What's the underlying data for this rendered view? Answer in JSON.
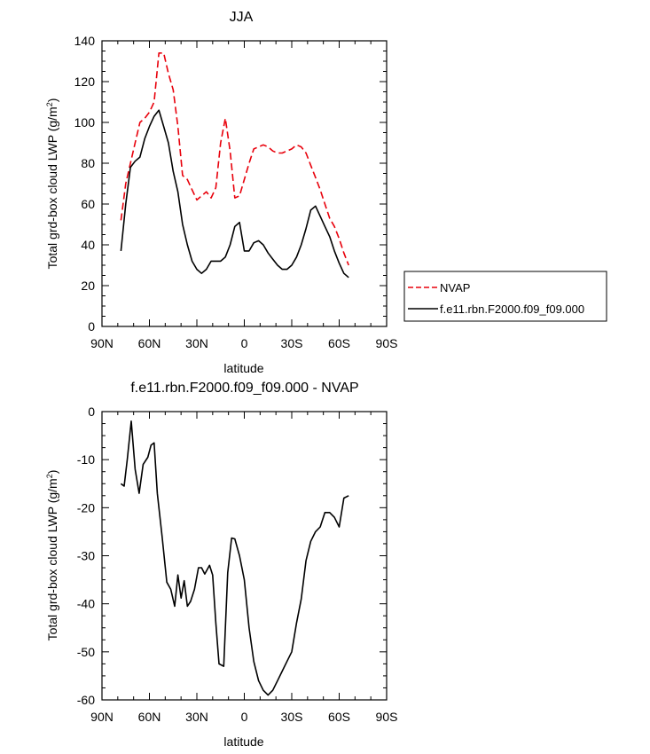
{
  "chart_data": [
    {
      "type": "line",
      "title": "JJA",
      "xlabel": "latitude",
      "ylabel": "Total grd-box cloud LWP (g/m²)",
      "ylabel_main": "Total grd-box cloud LWP (g/m",
      "ylabel_sup": "2",
      "ylabel_end": ")",
      "xlim": [
        -90,
        90
      ],
      "ylim": [
        0,
        140
      ],
      "x_tick_values": [
        -90,
        -60,
        -30,
        0,
        30,
        60,
        90
      ],
      "x_tick_labels": [
        "90N",
        "60N",
        "30N",
        "0",
        "30S",
        "60S",
        "90S"
      ],
      "y_tick_values": [
        0,
        20,
        40,
        60,
        80,
        100,
        120,
        140
      ],
      "y_tick_labels": [
        "0",
        "20",
        "40",
        "60",
        "80",
        "100",
        "120",
        "140"
      ],
      "legend": {
        "placement": "right, outside plot",
        "entries": [
          "NVAP",
          "f.e11.rbn.F2000.f09_f09.000"
        ]
      },
      "series": [
        {
          "name": "NVAP",
          "color": "#e8000b",
          "style": "dashed",
          "x": [
            -78,
            -75,
            -72,
            -69,
            -66,
            -63,
            -60,
            -57,
            -54,
            -51,
            -48,
            -45,
            -42,
            -39,
            -36,
            -33,
            -30,
            -27,
            -24,
            -21,
            -18,
            -15,
            -12,
            -9,
            -6,
            -3,
            0,
            3,
            6,
            9,
            12,
            15,
            18,
            21,
            24,
            27,
            30,
            33,
            36,
            39,
            42,
            45,
            48,
            51,
            54,
            57,
            60,
            63,
            66
          ],
          "y": [
            52,
            70,
            80,
            90,
            100,
            102,
            105,
            110,
            134,
            134,
            124,
            116,
            98,
            74,
            72,
            67,
            62,
            64,
            66,
            63,
            68,
            90,
            102,
            86,
            63,
            64,
            72,
            80,
            87,
            88,
            89,
            88,
            86,
            85,
            85,
            86,
            87,
            89,
            88,
            85,
            79,
            73,
            67,
            60,
            53,
            49,
            43,
            36,
            30
          ]
        },
        {
          "name": "f.e11.rbn.F2000.f09_f09.000",
          "color": "#000000",
          "style": "solid",
          "x": [
            -78,
            -75,
            -72,
            -69,
            -66,
            -63,
            -60,
            -57,
            -54,
            -51,
            -48,
            -45,
            -42,
            -39,
            -36,
            -33,
            -30,
            -27,
            -24,
            -21,
            -18,
            -15,
            -12,
            -9,
            -6,
            -3,
            0,
            3,
            6,
            9,
            12,
            15,
            18,
            21,
            24,
            27,
            30,
            33,
            36,
            39,
            42,
            45,
            48,
            51,
            54,
            57,
            60,
            63,
            66
          ],
          "y": [
            37,
            60,
            78,
            81,
            83,
            92,
            98,
            103,
            106,
            98,
            90,
            76,
            66,
            50,
            40,
            32,
            28,
            26,
            28,
            32,
            32,
            32,
            34,
            40,
            49,
            51,
            37,
            37,
            41,
            42,
            40,
            36,
            33,
            30,
            28,
            28,
            30,
            34,
            40,
            48,
            57,
            59,
            54,
            49,
            44,
            37,
            31,
            26,
            24
          ]
        }
      ]
    },
    {
      "type": "line",
      "title": "f.e11.rbn.F2000.f09_f09.000 - NVAP",
      "xlabel": "latitude",
      "ylabel": "Total grd-box cloud LWP (g/m²)",
      "ylabel_main": "Total grd-box cloud LWP (g/m",
      "ylabel_sup": "2",
      "ylabel_end": ")",
      "xlim": [
        -90,
        90
      ],
      "ylim": [
        -60,
        0
      ],
      "x_tick_values": [
        -90,
        -60,
        -30,
        0,
        30,
        60,
        90
      ],
      "x_tick_labels": [
        "90N",
        "60N",
        "30N",
        "0",
        "30S",
        "60S",
        "90S"
      ],
      "y_tick_values": [
        0,
        -10,
        -20,
        -30,
        -40,
        -50,
        -60
      ],
      "y_tick_labels": [
        "0",
        "-10",
        "-20",
        "-30",
        "-40",
        "-50",
        "-60"
      ],
      "series": [
        {
          "name": "f.e11.rbn.F2000.f09_f09.000 - NVAP",
          "color": "#000000",
          "style": "solid",
          "x": [
            -78,
            -76,
            -74,
            -71.5,
            -69,
            -66.5,
            -64,
            -61,
            -59,
            -57,
            -55,
            -52,
            -49,
            -46.5,
            -44,
            -42,
            -40,
            -38,
            -36,
            -34,
            -31.5,
            -29,
            -27,
            -25,
            -22,
            -20,
            -18,
            -16,
            -13,
            -10.5,
            -8,
            -6,
            -3,
            0,
            3,
            6,
            9,
            12,
            15,
            18,
            21,
            24,
            27,
            30,
            33,
            36,
            39,
            42,
            45,
            48,
            51,
            54,
            57,
            60,
            63,
            66
          ],
          "y": [
            -15,
            -15.5,
            -10,
            -2,
            -12,
            -17,
            -11,
            -9.5,
            -7,
            -6.5,
            -17,
            -26,
            -35.5,
            -37,
            -40.5,
            -34,
            -38.8,
            -35.2,
            -40.5,
            -39.5,
            -37,
            -32.5,
            -32.5,
            -33.8,
            -32,
            -34,
            -44,
            -52.5,
            -53,
            -33.5,
            -26.3,
            -26.5,
            -30,
            -35,
            -45,
            -52,
            -56,
            -58,
            -59,
            -58,
            -56,
            -54,
            -52,
            -50,
            -44,
            -39,
            -31,
            -27,
            -25,
            -24,
            -21,
            -21,
            -22,
            -24,
            -18,
            -17.5
          ]
        }
      ]
    }
  ]
}
